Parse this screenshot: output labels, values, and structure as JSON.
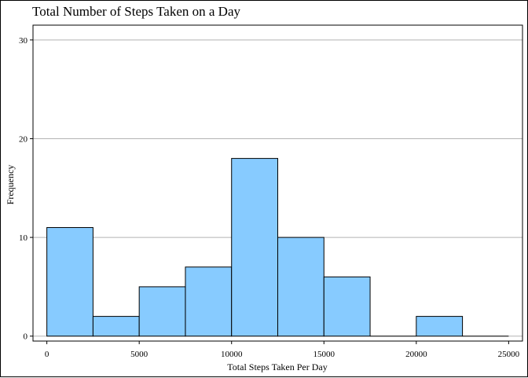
{
  "chart_data": {
    "type": "bar",
    "title": "Total Number of Steps Taken on a Day",
    "xlabel": "Total Steps Taken Per Day",
    "ylabel": "Frequency",
    "bin_edges": [
      0,
      2500,
      5000,
      7500,
      10000,
      12500,
      15000,
      17500,
      20000,
      22500,
      25000
    ],
    "values": [
      11,
      2,
      5,
      7,
      18,
      10,
      6,
      0,
      2,
      0
    ],
    "xlim": [
      -750,
      25750
    ],
    "ylim": [
      -0.5,
      31.5
    ],
    "xticks": [
      0,
      5000,
      10000,
      15000,
      20000,
      25000
    ],
    "yticks": [
      0,
      10,
      20,
      30
    ],
    "grid": "horizontal",
    "colors": {
      "bar_fill": "#87CBFF",
      "bar_stroke": "#000000",
      "grid": "#b3b3b3",
      "background": "#ffffff"
    }
  }
}
